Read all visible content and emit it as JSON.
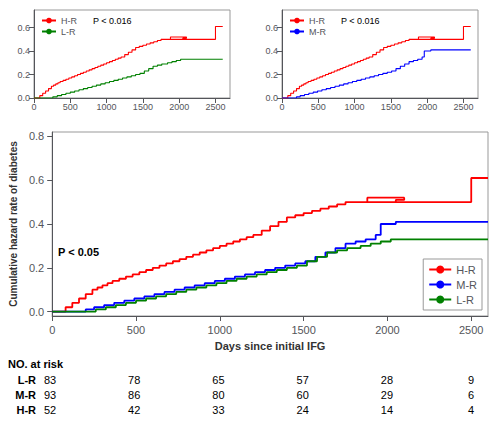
{
  "chart_data": [
    {
      "type": "step",
      "xlabel": "Days since initial IFG",
      "ylabel": "Cumulative hazard rate of diabetes",
      "xlim": [
        0,
        2600
      ],
      "ylim": [
        -0.02,
        0.82
      ],
      "xticks": [
        0,
        500,
        1000,
        1500,
        2000,
        2500
      ],
      "yticks": [
        {
          "value": 0.0,
          "label": "0.0"
        },
        0.2,
        0.4,
        0.6,
        0.8
      ],
      "grid": false,
      "legend": "lower right",
      "annotations": [
        "P < 0.05"
      ],
      "series": [
        {
          "name": "H-R",
          "color": "#FF0000",
          "x": [
            0,
            80,
            120,
            160,
            200,
            240,
            270,
            300,
            330,
            360,
            400,
            440,
            480,
            520,
            560,
            600,
            640,
            680,
            720,
            760,
            800,
            840,
            880,
            920,
            960,
            1000,
            1040,
            1080,
            1120,
            1160,
            1200,
            1250,
            1300,
            1350,
            1400,
            1450,
            1500,
            1550,
            1600,
            1650,
            1700,
            1750,
            1800,
            1850,
            1900,
            1950,
            2000,
            2050,
            2100,
            1880,
            2500,
            2600
          ],
          "values": [
            0.0,
            0.02,
            0.04,
            0.06,
            0.08,
            0.1,
            0.11,
            0.12,
            0.13,
            0.14,
            0.15,
            0.16,
            0.17,
            0.18,
            0.19,
            0.2,
            0.21,
            0.22,
            0.23,
            0.24,
            0.25,
            0.26,
            0.27,
            0.28,
            0.29,
            0.3,
            0.31,
            0.32,
            0.33,
            0.34,
            0.35,
            0.37,
            0.39,
            0.41,
            0.43,
            0.44,
            0.45,
            0.46,
            0.47,
            0.48,
            0.49,
            0.5,
            0.5,
            0.5,
            0.5,
            0.5,
            0.5,
            0.51,
            0.52,
            0.5,
            0.61,
            0.61
          ]
        },
        {
          "name": "M-R",
          "color": "#0000FF",
          "x": [
            0,
            200,
            250,
            310,
            370,
            430,
            490,
            550,
            610,
            670,
            730,
            790,
            850,
            910,
            970,
            1030,
            1090,
            1150,
            1210,
            1270,
            1330,
            1390,
            1450,
            1510,
            1570,
            1630,
            1690,
            1750,
            1810,
            1870,
            1930,
            1960,
            2000,
            2050,
            2500,
            2600
          ],
          "values": [
            0.0,
            0.01,
            0.02,
            0.03,
            0.04,
            0.05,
            0.06,
            0.07,
            0.08,
            0.09,
            0.1,
            0.11,
            0.12,
            0.13,
            0.14,
            0.15,
            0.16,
            0.17,
            0.18,
            0.19,
            0.2,
            0.21,
            0.22,
            0.23,
            0.25,
            0.27,
            0.29,
            0.31,
            0.32,
            0.33,
            0.35,
            0.4,
            0.4,
            0.41,
            0.41,
            0.41
          ]
        },
        {
          "name": "L-R",
          "color": "#008000",
          "x": [
            0,
            260,
            320,
            380,
            440,
            500,
            560,
            620,
            680,
            740,
            800,
            860,
            920,
            980,
            1040,
            1100,
            1160,
            1220,
            1280,
            1340,
            1400,
            1460,
            1520,
            1580,
            1640,
            1700,
            1760,
            1840,
            1900,
            1960,
            2020,
            2100,
            2200,
            2500,
            2600
          ],
          "values": [
            0.0,
            0.01,
            0.02,
            0.03,
            0.04,
            0.05,
            0.06,
            0.07,
            0.08,
            0.09,
            0.1,
            0.11,
            0.12,
            0.13,
            0.14,
            0.15,
            0.16,
            0.17,
            0.18,
            0.19,
            0.2,
            0.21,
            0.23,
            0.25,
            0.27,
            0.28,
            0.29,
            0.3,
            0.31,
            0.32,
            0.33,
            0.33,
            0.33,
            0.33,
            0.33
          ]
        }
      ],
      "at_risk": {
        "title": "NO. at risk",
        "rows": [
          {
            "name": "L-R",
            "values": [
              83,
              78,
              65,
              57,
              28,
              9
            ]
          },
          {
            "name": "M-R",
            "values": [
              93,
              86,
              80,
              60,
              29,
              6
            ]
          },
          {
            "name": "H-R",
            "values": [
              52,
              42,
              33,
              24,
              14,
              4
            ]
          }
        ]
      }
    },
    {
      "type": "step",
      "xlim": [
        0,
        2700
      ],
      "ylim": [
        0.0,
        0.75
      ],
      "xticks": [
        0,
        500,
        1000,
        1500,
        2000,
        2500
      ],
      "yticks": [
        {
          "value": 0.0,
          "label": "0.0"
        },
        0.2,
        0.4,
        0.6
      ],
      "grid": false,
      "legend": "upper left",
      "annotations": [
        "P < 0.016"
      ],
      "series": [
        {
          "name": "H-R",
          "color": "#FF0000",
          "x": [
            0,
            80,
            120,
            160,
            200,
            240,
            270,
            300,
            330,
            360,
            400,
            440,
            480,
            520,
            560,
            600,
            640,
            680,
            720,
            760,
            800,
            840,
            880,
            920,
            960,
            1000,
            1040,
            1080,
            1120,
            1160,
            1200,
            1250,
            1300,
            1350,
            1400,
            1450,
            1500,
            1550,
            1600,
            1650,
            1700,
            1750,
            1800,
            1850,
            1900,
            1950,
            2000,
            2050,
            2100,
            1880,
            2500,
            2600
          ],
          "values": [
            0.0,
            0.02,
            0.04,
            0.06,
            0.08,
            0.1,
            0.11,
            0.12,
            0.13,
            0.14,
            0.15,
            0.16,
            0.17,
            0.18,
            0.19,
            0.2,
            0.21,
            0.22,
            0.23,
            0.24,
            0.25,
            0.26,
            0.27,
            0.28,
            0.29,
            0.3,
            0.31,
            0.32,
            0.33,
            0.34,
            0.35,
            0.37,
            0.39,
            0.41,
            0.43,
            0.44,
            0.45,
            0.46,
            0.47,
            0.48,
            0.49,
            0.5,
            0.5,
            0.5,
            0.5,
            0.5,
            0.5,
            0.51,
            0.52,
            0.5,
            0.61,
            0.61
          ]
        },
        {
          "name": "L-R",
          "color": "#008000",
          "x": [
            0,
            260,
            320,
            380,
            440,
            500,
            560,
            620,
            680,
            740,
            800,
            860,
            920,
            980,
            1040,
            1100,
            1160,
            1220,
            1280,
            1340,
            1400,
            1460,
            1520,
            1580,
            1640,
            1700,
            1760,
            1840,
            1900,
            1960,
            2020,
            2100,
            2200,
            2500,
            2600
          ],
          "values": [
            0.0,
            0.01,
            0.02,
            0.03,
            0.04,
            0.05,
            0.06,
            0.07,
            0.08,
            0.09,
            0.1,
            0.11,
            0.12,
            0.13,
            0.14,
            0.15,
            0.16,
            0.17,
            0.18,
            0.19,
            0.2,
            0.21,
            0.23,
            0.25,
            0.27,
            0.28,
            0.29,
            0.3,
            0.31,
            0.32,
            0.33,
            0.33,
            0.33,
            0.33,
            0.33
          ]
        }
      ]
    },
    {
      "type": "step",
      "xlim": [
        0,
        2700
      ],
      "ylim": [
        0.0,
        0.75
      ],
      "xticks": [
        0,
        500,
        1000,
        1500,
        2000,
        2500
      ],
      "yticks": [
        {
          "value": 0.0,
          "label": "0.0"
        },
        0.2,
        0.4,
        0.6
      ],
      "grid": false,
      "legend": "upper left",
      "annotations": [
        "P < 0.016"
      ],
      "series": [
        {
          "name": "H-R",
          "color": "#FF0000",
          "x": [
            0,
            80,
            120,
            160,
            200,
            240,
            270,
            300,
            330,
            360,
            400,
            440,
            480,
            520,
            560,
            600,
            640,
            680,
            720,
            760,
            800,
            840,
            880,
            920,
            960,
            1000,
            1040,
            1080,
            1120,
            1160,
            1200,
            1250,
            1300,
            1350,
            1400,
            1450,
            1500,
            1550,
            1600,
            1650,
            1700,
            1750,
            1800,
            1850,
            1900,
            1950,
            2000,
            2050,
            2100,
            1880,
            2500,
            2600
          ],
          "values": [
            0.0,
            0.02,
            0.04,
            0.06,
            0.08,
            0.1,
            0.11,
            0.12,
            0.13,
            0.14,
            0.15,
            0.16,
            0.17,
            0.18,
            0.19,
            0.2,
            0.21,
            0.22,
            0.23,
            0.24,
            0.25,
            0.26,
            0.27,
            0.28,
            0.29,
            0.3,
            0.31,
            0.32,
            0.33,
            0.34,
            0.35,
            0.37,
            0.39,
            0.41,
            0.43,
            0.44,
            0.45,
            0.46,
            0.47,
            0.48,
            0.49,
            0.5,
            0.5,
            0.5,
            0.5,
            0.5,
            0.5,
            0.51,
            0.52,
            0.5,
            0.61,
            0.61
          ]
        },
        {
          "name": "M-R",
          "color": "#0000FF",
          "x": [
            0,
            200,
            250,
            310,
            370,
            430,
            490,
            550,
            610,
            670,
            730,
            790,
            850,
            910,
            970,
            1030,
            1090,
            1150,
            1210,
            1270,
            1330,
            1390,
            1450,
            1510,
            1570,
            1630,
            1690,
            1750,
            1810,
            1870,
            1930,
            1960,
            2000,
            2050,
            2500,
            2600
          ],
          "values": [
            0.0,
            0.01,
            0.02,
            0.03,
            0.04,
            0.05,
            0.06,
            0.07,
            0.08,
            0.09,
            0.1,
            0.11,
            0.12,
            0.13,
            0.14,
            0.15,
            0.16,
            0.17,
            0.18,
            0.19,
            0.2,
            0.21,
            0.22,
            0.23,
            0.25,
            0.27,
            0.29,
            0.31,
            0.32,
            0.33,
            0.35,
            0.4,
            0.4,
            0.41,
            0.41,
            0.41
          ]
        }
      ]
    }
  ]
}
